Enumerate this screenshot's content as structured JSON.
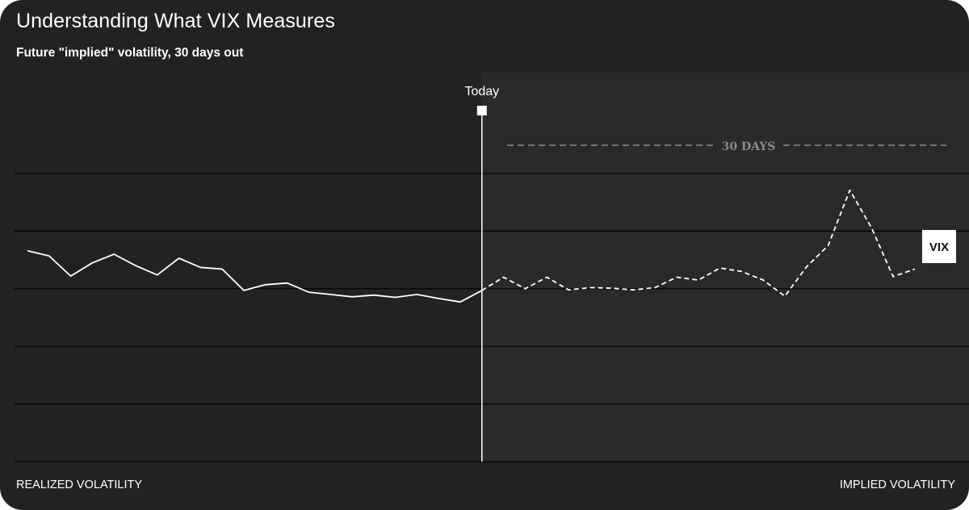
{
  "header": {
    "title": "Understanding What VIX Measures",
    "subtitle": "Future \"implied\" volatility, 30 days out"
  },
  "chart_data": {
    "type": "line",
    "title": "Understanding What VIX Measures",
    "subtitle": "Future \"implied\" volatility, 30 days out",
    "today_label": "Today",
    "window_label": "30 DAYS",
    "series_label": "VIX",
    "x_caption_left": "REALIZED VOLATILITY",
    "x_caption_right": "IMPLIED VOLATILITY",
    "grid": true,
    "ylim": [
      0,
      5
    ],
    "today_index": 21,
    "series": [
      {
        "name": "Realized volatility",
        "style": "solid",
        "x": [
          0,
          1,
          2,
          3,
          4,
          5,
          6,
          7,
          8,
          9,
          10,
          11,
          12,
          13,
          14,
          15,
          16,
          17,
          18,
          19,
          20,
          21
        ],
        "values": [
          3.66,
          3.57,
          3.22,
          3.45,
          3.6,
          3.4,
          3.24,
          3.53,
          3.37,
          3.34,
          2.97,
          3.07,
          3.1,
          2.94,
          2.9,
          2.86,
          2.89,
          2.85,
          2.9,
          2.83,
          2.77,
          2.97
        ]
      },
      {
        "name": "Implied volatility",
        "style": "dashed",
        "x": [
          21,
          22,
          23,
          24,
          25,
          26,
          27,
          28,
          29,
          30,
          31,
          32,
          33,
          34,
          35,
          36,
          37,
          38,
          39,
          40,
          41
        ],
        "values": [
          2.97,
          3.2,
          3.0,
          3.2,
          2.98,
          3.02,
          3.01,
          2.98,
          3.02,
          3.2,
          3.15,
          3.36,
          3.3,
          3.15,
          2.87,
          3.38,
          3.75,
          4.71,
          4.06,
          3.21,
          3.34
        ]
      }
    ],
    "colors": {
      "background": "#222222",
      "future_region": "#2a2a2a",
      "line": "#ffffff",
      "grid": "#000000",
      "window_marker": "#8a8a8a",
      "badge_bg": "#ffffff",
      "badge_text": "#111111"
    }
  }
}
